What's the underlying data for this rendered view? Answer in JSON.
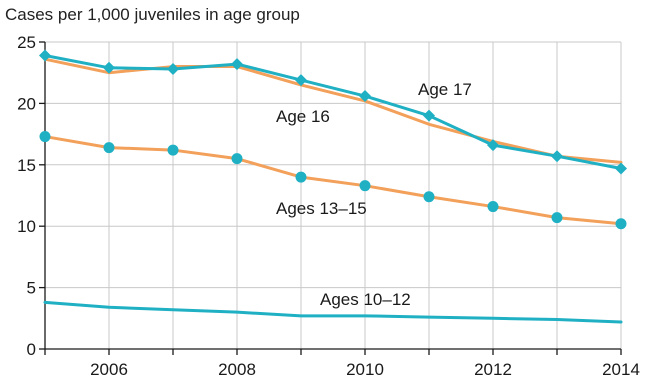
{
  "chart_data": {
    "type": "line",
    "title": "Cases per 1,000 juveniles in age group",
    "x": [
      2005,
      2006,
      2007,
      2008,
      2009,
      2010,
      2011,
      2012,
      2013,
      2014
    ],
    "xticks": [
      2006,
      2008,
      2010,
      2012,
      2014
    ],
    "yticks": [
      0,
      5,
      10,
      15,
      20,
      25
    ],
    "xlim": [
      2005,
      2014
    ],
    "ylim": [
      0,
      25
    ],
    "grid": true,
    "series": [
      {
        "name": "Ages 10–12",
        "color": "#1fb0c4",
        "markers": "none",
        "values": [
          3.8,
          3.4,
          3.2,
          3.0,
          2.7,
          2.7,
          2.6,
          2.5,
          2.4,
          2.2
        ]
      },
      {
        "name": "Ages 13–15",
        "color": "#f2a05a",
        "markers": "circle",
        "marker_color": "#1fb0c4",
        "values": [
          17.3,
          16.4,
          16.2,
          15.5,
          14.0,
          13.3,
          12.4,
          11.6,
          10.7,
          10.2
        ]
      },
      {
        "name": "Age 16",
        "color": "#f2a05a",
        "markers": "none",
        "values": [
          23.6,
          22.5,
          23.0,
          23.0,
          21.5,
          20.2,
          18.3,
          16.9,
          15.7,
          15.2
        ]
      },
      {
        "name": "Age 17",
        "color": "#1fb0c4",
        "markers": "diamond",
        "values": [
          23.9,
          22.9,
          22.8,
          23.2,
          21.9,
          20.6,
          19.0,
          16.6,
          15.7,
          14.7
        ]
      }
    ],
    "labels": [
      {
        "text": "Age 17",
        "series": 3
      },
      {
        "text": "Age 16",
        "series": 2
      },
      {
        "text": "Ages 13–15",
        "series": 1
      },
      {
        "text": "Ages 10–12",
        "series": 0
      }
    ]
  }
}
